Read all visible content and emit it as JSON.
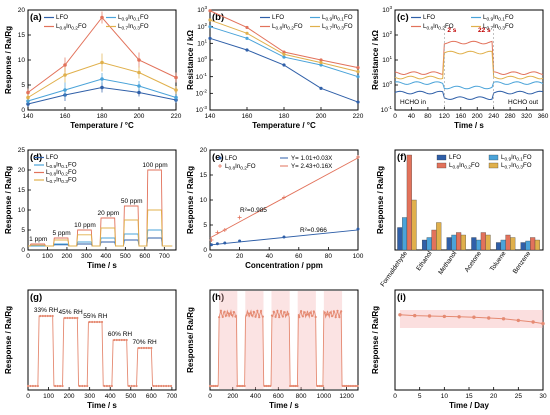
{
  "colors": {
    "LFO": "#2f5fa8",
    "L09In01FO": "#4aa3d9",
    "L08In02FO": "#e2725b",
    "L07In03FO": "#e0b04c",
    "pink": "#f4b0b0",
    "line": "#e58a72"
  },
  "legend_names": [
    "LFO",
    "L0.9In0.1FO",
    "L0.8In0.2FO",
    "L0.7In0.3FO"
  ],
  "chart_data": [
    {
      "panel": "(a)",
      "type": "line",
      "xlabel": "Temperature / °C",
      "ylabel": "Response / Ra/Rg",
      "xlim": [
        140,
        220
      ],
      "ylim": [
        0,
        20
      ],
      "xticks": [
        "140",
        "160",
        "180",
        "200",
        "220"
      ],
      "yticks": [
        "0",
        "5",
        "10",
        "15",
        "20"
      ],
      "x": [
        140,
        160,
        180,
        200,
        220
      ],
      "series": [
        {
          "name": "LFO",
          "values": [
            1.2,
            3.0,
            4.5,
            3.5,
            2.0
          ],
          "err": [
            0.6,
            1.2,
            1.0,
            0.8,
            0.6
          ]
        },
        {
          "name": "L0.9In0.1FO",
          "values": [
            1.8,
            4.0,
            6.2,
            4.8,
            2.5
          ],
          "err": [
            0.6,
            1.5,
            1.2,
            1.0,
            0.8
          ]
        },
        {
          "name": "L0.8In0.2FO",
          "values": [
            3.5,
            9.0,
            18.5,
            10.0,
            6.5
          ],
          "err": [
            0.8,
            1.5,
            1.2,
            1.5,
            1.0
          ]
        },
        {
          "name": "L0.7In0.3FO",
          "values": [
            2.5,
            7.0,
            9.5,
            7.5,
            4.0
          ],
          "err": [
            0.6,
            1.5,
            1.8,
            1.2,
            0.8
          ]
        }
      ]
    },
    {
      "panel": "(b)",
      "type": "line",
      "yscale": "log",
      "xlabel": "Temperature / °C",
      "ylabel": "Resistance / kΩ",
      "xlim": [
        140,
        220
      ],
      "ylim_exp": [
        -3,
        3
      ],
      "xticks": [
        "140",
        "160",
        "180",
        "200",
        "220"
      ],
      "yticks_exp": [
        "-3",
        "-2",
        "-1",
        "0",
        "1",
        "2",
        "3"
      ],
      "x": [
        140,
        160,
        180,
        200,
        220
      ],
      "series": [
        {
          "name": "LFO",
          "values": [
            20,
            4,
            0.5,
            0.02,
            0.003
          ]
        },
        {
          "name": "L0.9In0.1FO",
          "values": [
            100,
            20,
            1.5,
            0.5,
            0.1
          ]
        },
        {
          "name": "L0.8In0.2FO",
          "values": [
            900,
            90,
            3,
            1.0,
            0.35
          ]
        },
        {
          "name": "L0.7In0.3FO",
          "values": [
            250,
            40,
            2.2,
            0.7,
            0.2
          ]
        }
      ]
    },
    {
      "panel": "(c)",
      "type": "line",
      "yscale": "log",
      "xlabel": "Time / s",
      "ylabel": "Resistance / kΩ",
      "xlim": [
        0,
        360
      ],
      "ylim_exp": [
        -1,
        3
      ],
      "xticks": [
        "0",
        "40",
        "80",
        "120",
        "160",
        "200",
        "240",
        "280",
        "320",
        "360"
      ],
      "yticks_exp": [
        "-1",
        "0",
        "1",
        "2",
        "3"
      ],
      "on": 120,
      "off": 240,
      "levels": [
        {
          "name": "LFO",
          "base": 0.5,
          "gas": 0.3
        },
        {
          "name": "L0.9In0.1FO",
          "base": 1.2,
          "gas": 0.8
        },
        {
          "name": "L0.8In0.2FO",
          "base": 3.0,
          "gas": 50
        },
        {
          "name": "L0.7In0.3FO",
          "base": 2.0,
          "gas": 20
        }
      ],
      "annotations": {
        "in": "HCHO in",
        "out": "HCHO out",
        "t_left": "2 s",
        "t_right": "22 s"
      }
    },
    {
      "panel": "(d)",
      "type": "line",
      "xlabel": "Time / s",
      "ylabel": "Response / Ra/Rg",
      "xlim": [
        0,
        760
      ],
      "ylim": [
        0,
        25
      ],
      "xticks": [
        "0",
        "100",
        "200",
        "300",
        "400",
        "500",
        "600",
        "700"
      ],
      "yticks": [
        "0",
        "5",
        "10",
        "15",
        "20",
        "25"
      ],
      "pulse_starts": [
        15,
        135,
        255,
        375,
        495,
        615
      ],
      "pulse_width": 75,
      "conc_labels": [
        "1 ppm",
        "5 ppm",
        "10 ppm",
        "20 ppm",
        "50 ppm",
        "100 ppm"
      ],
      "series": [
        {
          "name": "LFO",
          "values": [
            1.0,
            1.3,
            1.5,
            2.0,
            2.5,
            3.0
          ]
        },
        {
          "name": "L0.9In0.1FO",
          "values": [
            1.0,
            1.5,
            2.0,
            3.0,
            4.0,
            5.0
          ]
        },
        {
          "name": "L0.8In0.2FO",
          "values": [
            1.5,
            3.0,
            5.0,
            8.0,
            11.0,
            20.0
          ]
        },
        {
          "name": "L0.7In0.3FO",
          "values": [
            1.2,
            2.5,
            3.8,
            5.5,
            7.5,
            10.0
          ]
        }
      ]
    },
    {
      "panel": "(e)",
      "type": "scatter",
      "xlabel": "Concentration / ppm",
      "ylabel": "Response / Ra/Rg",
      "xlim": [
        0,
        100
      ],
      "ylim": [
        0,
        20
      ],
      "xticks": [
        "0",
        "20",
        "40",
        "60",
        "80",
        "100"
      ],
      "yticks": [
        "0",
        "5",
        "10",
        "15",
        "20"
      ],
      "x": [
        1,
        5,
        10,
        20,
        50,
        100
      ],
      "series": [
        {
          "name": "LFO",
          "values": [
            1.05,
            1.25,
            1.4,
            1.8,
            2.6,
            4.2
          ],
          "fit": "Y= 1.01+0.03X",
          "r2": "R²=0.966",
          "slope": 0.03,
          "intercept": 1.01
        },
        {
          "name": "L0.8In0.2FO",
          "values": [
            2.0,
            3.5,
            4.0,
            6.5,
            10.5,
            18.6
          ],
          "fit": "Y= 2.43+0.16X",
          "r2": "R²=0.985",
          "slope": 0.16,
          "intercept": 2.43
        }
      ]
    },
    {
      "panel": "(f)",
      "type": "bar",
      "ylabel": "Response / Ra/Rg",
      "ylim": [
        0,
        20
      ],
      "categories": [
        "Formaldehyde",
        "Ethanol",
        "Methanol",
        "Acetone",
        "Toluene",
        "Benzene"
      ],
      "series": [
        {
          "name": "LFO",
          "values": [
            4.5,
            2.0,
            2.5,
            2.5,
            1.5,
            1.5
          ]
        },
        {
          "name": "L0.9In0.1FO",
          "values": [
            6.5,
            2.5,
            3.0,
            2.0,
            2.0,
            1.8
          ]
        },
        {
          "name": "L0.8In0.2FO",
          "values": [
            19.0,
            4.0,
            3.5,
            3.5,
            3.0,
            2.5
          ]
        },
        {
          "name": "L0.7In0.3FO",
          "values": [
            10.0,
            5.5,
            3.0,
            3.0,
            2.5,
            2.0
          ]
        }
      ]
    },
    {
      "panel": "(g)",
      "type": "line",
      "xlabel": "Time / s",
      "ylabel": "Response / Ra/Rg",
      "xlim": [
        0,
        720
      ],
      "ylim": [
        0,
        25
      ],
      "xticks": [
        "0",
        "100",
        "200",
        "300",
        "400",
        "500",
        "600",
        "700"
      ],
      "pulse_starts": [
        50,
        170,
        290,
        410,
        530
      ],
      "pulse_width": 75,
      "values": [
        18.5,
        18.0,
        17.0,
        12.5,
        10.5
      ],
      "rh_labels": [
        "33% RH",
        "45% RH",
        "55% RH",
        "60% RH",
        "70% RH"
      ]
    },
    {
      "panel": "(h)",
      "type": "line",
      "xlabel": "Time / s",
      "ylabel": "Response/ Ra/Rg",
      "xlim": [
        0,
        1300
      ],
      "ylim": [
        0,
        25
      ],
      "xticks": [
        "0",
        "200",
        "400",
        "600",
        "800",
        "1000",
        "1200"
      ],
      "pulse_starts": [
        80,
        310,
        540,
        770,
        1000
      ],
      "pulse_width": 160,
      "values": [
        19.0,
        19.0,
        19.0,
        19.0,
        19.0
      ]
    },
    {
      "panel": "(i)",
      "type": "line",
      "xlabel": "Time / Day",
      "ylabel": "Response / Ra/Rg",
      "xlim": [
        0,
        30
      ],
      "ylim": [
        0,
        25
      ],
      "xticks": [
        "0",
        "5",
        "10",
        "15",
        "20",
        "25",
        "30"
      ],
      "x": [
        1,
        4,
        7,
        10,
        13,
        16,
        19,
        22,
        25,
        28,
        30
      ],
      "values": [
        18.8,
        18.6,
        18.5,
        18.4,
        18.3,
        18.2,
        18.0,
        17.8,
        17.4,
        17.0,
        16.6
      ]
    }
  ]
}
